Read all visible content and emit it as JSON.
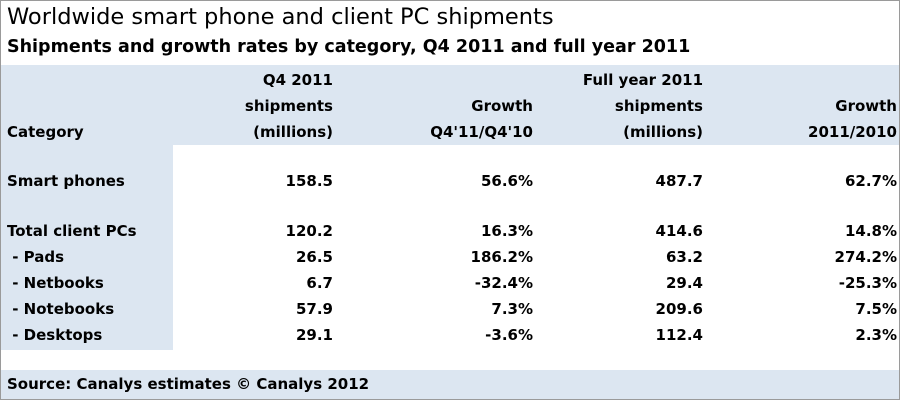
{
  "title": "Worldwide smart phone and client PC shipments",
  "subtitle": "Shipments and growth rates by category, Q4 2011 and full year 2011",
  "headers": {
    "category": "Category",
    "q4_shipments": [
      "Q4 2011",
      "shipments",
      "(millions)"
    ],
    "q4_growth": [
      "Growth",
      "Q4'11/Q4'10"
    ],
    "fy_shipments": [
      "Full year 2011",
      "shipments",
      "(millions)"
    ],
    "fy_growth": [
      "Growth",
      "2011/2010"
    ]
  },
  "chart_data": {
    "type": "table",
    "title": "Worldwide smart phone and client PC shipments",
    "subtitle": "Shipments and growth rates by category, Q4 2011 and full year 2011",
    "columns": [
      "Category",
      "Q4 2011 shipments (millions)",
      "Growth Q4'11/Q4'10",
      "Full year 2011 shipments (millions)",
      "Growth 2011/2010"
    ],
    "rows": [
      [
        "Smart phones",
        "158.5",
        "56.6%",
        "487.7",
        "62.7%"
      ],
      [
        "Total client PCs",
        "120.2",
        "16.3%",
        "414.6",
        "14.8%"
      ],
      [
        " - Pads",
        "26.5",
        "186.2%",
        "63.2",
        "274.2%"
      ],
      [
        " - Netbooks",
        "6.7",
        "-32.4%",
        "29.4",
        "-25.3%"
      ],
      [
        " - Notebooks",
        "57.9",
        "7.3%",
        "209.6",
        "7.5%"
      ],
      [
        " - Desktops",
        "29.1",
        "-3.6%",
        "112.4",
        "2.3%"
      ]
    ]
  },
  "source": "Source: Canalys estimates © Canalys 2012",
  "colors": {
    "band": "#dce6f1",
    "border": "#9a9a9a",
    "text": "#000000"
  }
}
